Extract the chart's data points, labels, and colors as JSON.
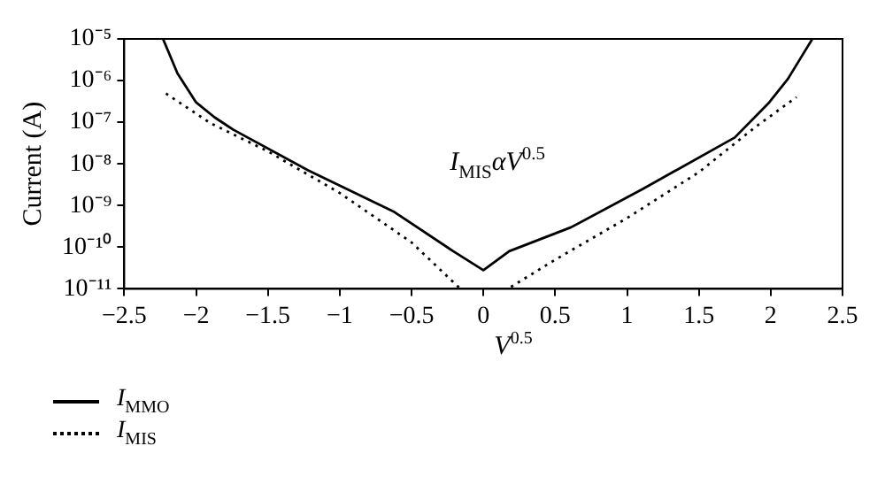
{
  "chart_data": {
    "type": "line",
    "ylabel": "Current (A)",
    "xlabel": "V$^{0.5}$",
    "annotations": [
      "I$_{MIS}$αV$^{0.5}$"
    ],
    "xlim": [
      -2.5,
      2.5
    ],
    "xticks": [
      -2.5,
      -2,
      -1.5,
      -1,
      -0.5,
      0,
      0.5,
      1,
      1.5,
      2,
      2.5
    ],
    "ylim": [
      1e-11,
      1e-05
    ],
    "yticks": [
      {
        "value": 1e-11,
        "label": "10⁻¹¹"
      },
      {
        "value": 1e-10,
        "label": "10⁻¹⁰"
      },
      {
        "value": 1e-09,
        "label": "10⁻⁹"
      },
      {
        "value": 1e-08,
        "label": "10⁻⁸"
      },
      {
        "value": 1e-07,
        "label": "10⁻⁷"
      },
      {
        "value": 1e-06,
        "label": "10⁻⁶"
      },
      {
        "value": 1e-05,
        "label": "10⁻⁵"
      }
    ],
    "log": "y",
    "grid": false,
    "legend": "bottom left",
    "marker": "none",
    "series": [
      {
        "name": "I$_{MMO}$",
        "color": "#000000",
        "line_style": "solid",
        "x": [
          -2.23,
          -2.13,
          -2.0,
          -1.87,
          -1.74,
          -1.22,
          -0.62,
          -0.21,
          0,
          0.18,
          0.61,
          1.11,
          1.75,
          1.99,
          2.12,
          2.23,
          2.29
        ],
        "values": [
          1e-05,
          1.5e-06,
          3e-07,
          1.3e-07,
          6.6e-08,
          7e-09,
          7e-10,
          8e-11,
          2.8e-11,
          8e-11,
          3e-10,
          2.5e-09,
          4.3e-08,
          3e-07,
          1.1e-06,
          4.6e-06,
          1e-05
        ]
      },
      {
        "name": "I$_{MIS}$",
        "color": "#000000",
        "line_style": "dotted",
        "x": [
          -2.21,
          -1.9,
          -1.5,
          -1.0,
          -0.5,
          -0.16,
          0.17,
          0.5,
          1.0,
          1.5,
          1.9,
          2.18
        ],
        "values": [
          4.9e-07,
          9.5e-08,
          2e-08,
          2e-09,
          1.3e-10,
          1e-11,
          1e-11,
          5e-11,
          5e-10,
          6.3e-09,
          8e-08,
          4e-07
        ]
      }
    ]
  }
}
